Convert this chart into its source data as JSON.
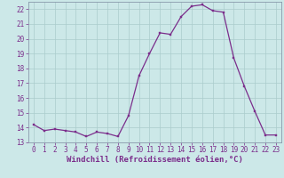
{
  "x": [
    0,
    1,
    2,
    3,
    4,
    5,
    6,
    7,
    8,
    9,
    10,
    11,
    12,
    13,
    14,
    15,
    16,
    17,
    18,
    19,
    20,
    21,
    22,
    23
  ],
  "y": [
    14.2,
    13.8,
    13.9,
    13.8,
    13.7,
    13.4,
    13.7,
    13.6,
    13.4,
    14.8,
    17.5,
    19.0,
    20.4,
    20.3,
    21.5,
    22.2,
    22.3,
    21.9,
    21.8,
    18.7,
    16.8,
    15.1,
    13.5,
    13.5
  ],
  "line_color": "#7b2d8b",
  "marker_color": "#7b2d8b",
  "bg_color": "#cce8e8",
  "grid_color": "#aacccc",
  "xlabel": "Windchill (Refroidissement éolien,°C)",
  "ylim": [
    13,
    22.5
  ],
  "xlim": [
    -0.5,
    23.5
  ],
  "yticks": [
    13,
    14,
    15,
    16,
    17,
    18,
    19,
    20,
    21,
    22
  ],
  "xticks": [
    0,
    1,
    2,
    3,
    4,
    5,
    6,
    7,
    8,
    9,
    10,
    11,
    12,
    13,
    14,
    15,
    16,
    17,
    18,
    19,
    20,
    21,
    22,
    23
  ],
  "tick_fontsize": 5.5,
  "xlabel_fontsize": 6.5
}
